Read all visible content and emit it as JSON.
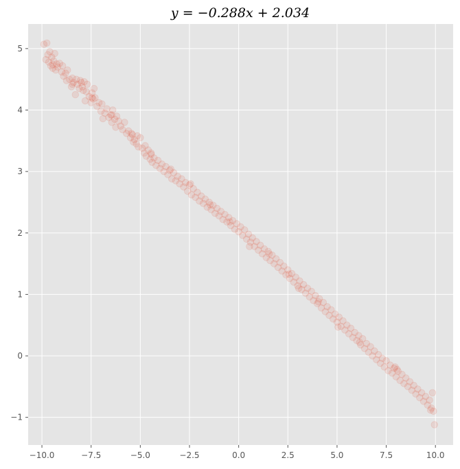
{
  "chart_data": {
    "type": "scatter",
    "title": "y = −0.288x + 2.034",
    "xlabel": "",
    "ylabel": "",
    "xlim": [
      -10.7,
      10.9
    ],
    "ylim": [
      -1.45,
      5.4
    ],
    "xticks": [
      -10.0,
      -7.5,
      -5.0,
      -2.5,
      0.0,
      2.5,
      5.0,
      7.5,
      10.0
    ],
    "xtick_labels": [
      "−10.0",
      "−7.5",
      "−5.0",
      "−2.5",
      "0.0",
      "2.5",
      "5.0",
      "7.5",
      "10.0"
    ],
    "yticks": [
      -1,
      0,
      1,
      2,
      3,
      4,
      5
    ],
    "ytick_labels": [
      "−1",
      "0",
      "1",
      "2",
      "3",
      "4",
      "5"
    ],
    "grid": true,
    "background_color": "#e5e5e5",
    "marker_color": "#e24a33",
    "marker_alpha": 0.12,
    "series": [
      {
        "points": [
          [
            -9.9,
            5.07
          ],
          [
            -9.8,
            4.82
          ],
          [
            -9.75,
            5.09
          ],
          [
            -9.7,
            4.9
          ],
          [
            -9.65,
            4.78
          ],
          [
            -9.6,
            4.95
          ],
          [
            -9.55,
            4.72
          ],
          [
            -9.5,
            4.86
          ],
          [
            -9.45,
            4.68
          ],
          [
            -9.4,
            4.8
          ],
          [
            -9.35,
            4.92
          ],
          [
            -9.3,
            4.65
          ],
          [
            -9.25,
            4.75
          ],
          [
            -9.2,
            4.7
          ],
          [
            -9.1,
            4.76
          ],
          [
            -9.0,
            4.62
          ],
          [
            -8.95,
            4.72
          ],
          [
            -8.9,
            4.55
          ],
          [
            -8.8,
            4.6
          ],
          [
            -8.75,
            4.48
          ],
          [
            -8.7,
            4.65
          ],
          [
            -8.6,
            4.5
          ],
          [
            -8.5,
            4.38
          ],
          [
            -8.45,
            4.52
          ],
          [
            -8.4,
            4.45
          ],
          [
            -8.3,
            4.25
          ],
          [
            -8.25,
            4.5
          ],
          [
            -8.2,
            4.42
          ],
          [
            -8.1,
            4.35
          ],
          [
            -8.05,
            4.48
          ],
          [
            -8.0,
            4.45
          ],
          [
            -7.95,
            4.38
          ],
          [
            -7.9,
            4.32
          ],
          [
            -7.85,
            4.46
          ],
          [
            -7.8,
            4.15
          ],
          [
            -7.75,
            4.3
          ],
          [
            -7.7,
            4.42
          ],
          [
            -7.6,
            4.22
          ],
          [
            -7.5,
            4.12
          ],
          [
            -7.45,
            4.28
          ],
          [
            -7.4,
            4.18
          ],
          [
            -7.35,
            4.35
          ],
          [
            -7.3,
            4.2
          ],
          [
            -7.2,
            4.06
          ],
          [
            -7.1,
            4.12
          ],
          [
            -7.0,
            3.98
          ],
          [
            -6.95,
            4.1
          ],
          [
            -6.9,
            3.86
          ],
          [
            -6.8,
            3.95
          ],
          [
            -6.7,
            4.02
          ],
          [
            -6.6,
            3.88
          ],
          [
            -6.5,
            3.92
          ],
          [
            -6.45,
            3.8
          ],
          [
            -6.4,
            4.0
          ],
          [
            -6.3,
            3.85
          ],
          [
            -6.25,
            3.72
          ],
          [
            -6.2,
            3.9
          ],
          [
            -6.1,
            3.82
          ],
          [
            -6.0,
            3.74
          ],
          [
            -5.9,
            3.68
          ],
          [
            -5.8,
            3.8
          ],
          [
            -5.7,
            3.62
          ],
          [
            -5.6,
            3.66
          ],
          [
            -5.5,
            3.55
          ],
          [
            -5.4,
            3.6
          ],
          [
            -5.35,
            3.48
          ],
          [
            -5.3,
            3.52
          ],
          [
            -5.2,
            3.45
          ],
          [
            -5.15,
            3.58
          ],
          [
            -5.1,
            3.4
          ],
          [
            -5.0,
            3.55
          ],
          [
            -4.9,
            3.38
          ],
          [
            -4.8,
            3.3
          ],
          [
            -4.75,
            3.42
          ],
          [
            -4.7,
            3.25
          ],
          [
            -4.6,
            3.35
          ],
          [
            -4.5,
            3.2
          ],
          [
            -4.45,
            3.28
          ],
          [
            -4.4,
            3.15
          ],
          [
            -4.3,
            3.22
          ],
          [
            -4.2,
            3.1
          ],
          [
            -4.1,
            3.18
          ],
          [
            -4.0,
            3.05
          ],
          [
            -3.9,
            3.12
          ],
          [
            -3.8,
            3.0
          ],
          [
            -3.7,
            3.08
          ],
          [
            -3.6,
            2.95
          ],
          [
            -3.5,
            3.02
          ],
          [
            -3.4,
            2.88
          ],
          [
            -3.3,
            2.98
          ],
          [
            -3.2,
            2.85
          ],
          [
            -3.1,
            2.92
          ],
          [
            -3.0,
            2.8
          ],
          [
            -2.9,
            2.88
          ],
          [
            -2.8,
            2.75
          ],
          [
            -2.7,
            2.82
          ],
          [
            -2.6,
            2.68
          ],
          [
            -2.5,
            2.78
          ],
          [
            -2.4,
            2.62
          ],
          [
            -2.3,
            2.72
          ],
          [
            -2.2,
            2.58
          ],
          [
            -2.1,
            2.66
          ],
          [
            -2.0,
            2.52
          ],
          [
            -1.9,
            2.6
          ],
          [
            -1.8,
            2.48
          ],
          [
            -1.7,
            2.55
          ],
          [
            -1.6,
            2.42
          ],
          [
            -1.5,
            2.5
          ],
          [
            -1.4,
            2.38
          ],
          [
            -1.3,
            2.45
          ],
          [
            -1.2,
            2.32
          ],
          [
            -1.1,
            2.4
          ],
          [
            -1.0,
            2.28
          ],
          [
            -0.9,
            2.35
          ],
          [
            -0.8,
            2.22
          ],
          [
            -0.7,
            2.3
          ],
          [
            -0.6,
            2.18
          ],
          [
            -0.5,
            2.25
          ],
          [
            -0.4,
            2.12
          ],
          [
            -0.3,
            2.2
          ],
          [
            -0.2,
            2.06
          ],
          [
            -0.1,
            2.15
          ],
          [
            0.0,
            2.02
          ],
          [
            0.1,
            2.1
          ],
          [
            0.2,
            1.96
          ],
          [
            0.3,
            2.05
          ],
          [
            0.4,
            1.9
          ],
          [
            0.5,
            1.98
          ],
          [
            0.6,
            1.85
          ],
          [
            0.7,
            1.92
          ],
          [
            0.8,
            1.78
          ],
          [
            0.9,
            1.86
          ],
          [
            1.0,
            1.72
          ],
          [
            1.1,
            1.8
          ],
          [
            1.2,
            1.66
          ],
          [
            1.3,
            1.74
          ],
          [
            1.4,
            1.6
          ],
          [
            1.5,
            1.7
          ],
          [
            1.6,
            1.55
          ],
          [
            1.7,
            1.64
          ],
          [
            1.8,
            1.5
          ],
          [
            1.9,
            1.58
          ],
          [
            2.0,
            1.44
          ],
          [
            2.1,
            1.52
          ],
          [
            2.2,
            1.38
          ],
          [
            2.3,
            1.46
          ],
          [
            2.4,
            1.32
          ],
          [
            2.5,
            1.4
          ],
          [
            2.6,
            1.26
          ],
          [
            2.7,
            1.34
          ],
          [
            2.8,
            1.2
          ],
          [
            2.9,
            1.28
          ],
          [
            3.0,
            1.14
          ],
          [
            3.1,
            1.22
          ],
          [
            3.2,
            1.08
          ],
          [
            3.3,
            1.16
          ],
          [
            3.4,
            1.02
          ],
          [
            3.5,
            1.1
          ],
          [
            3.6,
            0.96
          ],
          [
            3.7,
            1.05
          ],
          [
            3.8,
            0.9
          ],
          [
            3.9,
            0.98
          ],
          [
            4.0,
            0.85
          ],
          [
            4.1,
            0.93
          ],
          [
            4.2,
            0.78
          ],
          [
            4.3,
            0.87
          ],
          [
            4.4,
            0.72
          ],
          [
            4.5,
            0.8
          ],
          [
            4.6,
            0.66
          ],
          [
            4.7,
            0.75
          ],
          [
            4.8,
            0.6
          ],
          [
            4.9,
            0.68
          ],
          [
            5.0,
            0.55
          ],
          [
            5.1,
            0.63
          ],
          [
            5.2,
            0.48
          ],
          [
            5.3,
            0.57
          ],
          [
            5.4,
            0.42
          ],
          [
            5.5,
            0.5
          ],
          [
            5.6,
            0.36
          ],
          [
            5.7,
            0.45
          ],
          [
            5.8,
            0.3
          ],
          [
            5.9,
            0.38
          ],
          [
            6.0,
            0.25
          ],
          [
            6.1,
            0.33
          ],
          [
            6.2,
            0.18
          ],
          [
            6.3,
            0.28
          ],
          [
            6.4,
            0.12
          ],
          [
            6.5,
            0.2
          ],
          [
            6.6,
            0.06
          ],
          [
            6.7,
            0.15
          ],
          [
            6.8,
            0.0
          ],
          [
            6.9,
            0.08
          ],
          [
            7.0,
            -0.06
          ],
          [
            7.1,
            0.02
          ],
          [
            7.2,
            -0.12
          ],
          [
            7.3,
            -0.04
          ],
          [
            7.4,
            -0.18
          ],
          [
            7.5,
            -0.08
          ],
          [
            7.6,
            -0.24
          ],
          [
            7.7,
            -0.15
          ],
          [
            7.8,
            -0.28
          ],
          [
            7.9,
            -0.2
          ],
          [
            8.0,
            -0.34
          ],
          [
            8.1,
            -0.25
          ],
          [
            8.2,
            -0.4
          ],
          [
            8.3,
            -0.3
          ],
          [
            8.4,
            -0.45
          ],
          [
            8.5,
            -0.36
          ],
          [
            8.6,
            -0.5
          ],
          [
            8.7,
            -0.42
          ],
          [
            8.8,
            -0.56
          ],
          [
            8.9,
            -0.48
          ],
          [
            9.0,
            -0.62
          ],
          [
            9.1,
            -0.54
          ],
          [
            9.2,
            -0.68
          ],
          [
            9.3,
            -0.6
          ],
          [
            9.4,
            -0.74
          ],
          [
            9.5,
            -0.66
          ],
          [
            9.6,
            -0.8
          ],
          [
            9.7,
            -0.72
          ],
          [
            9.8,
            -0.85
          ],
          [
            9.85,
            -0.6
          ],
          [
            9.9,
            -0.9
          ],
          [
            9.95,
            -1.12
          ],
          [
            9.75,
            -0.88
          ],
          [
            8.05,
            -0.22
          ],
          [
            7.95,
            -0.18
          ],
          [
            6.15,
            0.22
          ],
          [
            5.05,
            0.47
          ],
          [
            4.05,
            0.88
          ],
          [
            3.05,
            1.1
          ],
          [
            2.55,
            1.33
          ],
          [
            1.55,
            1.66
          ],
          [
            0.55,
            1.78
          ],
          [
            -0.45,
            2.18
          ],
          [
            -1.45,
            2.46
          ],
          [
            -2.45,
            2.8
          ],
          [
            -3.45,
            3.04
          ],
          [
            -4.45,
            3.3
          ],
          [
            -5.45,
            3.62
          ],
          [
            -6.45,
            3.92
          ],
          [
            -7.45,
            4.2
          ],
          [
            -8.45,
            4.42
          ],
          [
            -9.45,
            4.74
          ]
        ]
      }
    ]
  }
}
